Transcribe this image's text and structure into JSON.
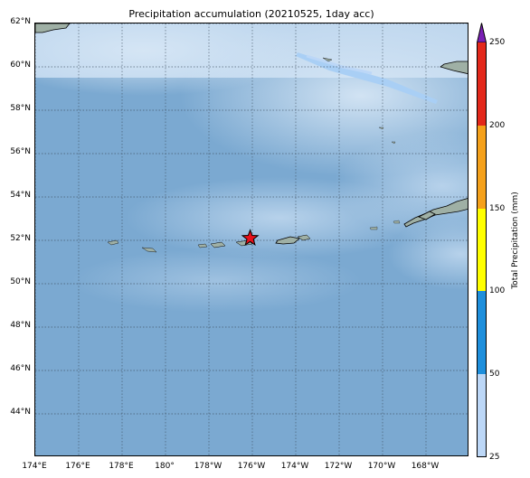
{
  "title": "Precipitation accumulation (20210525, 1day acc)",
  "map": {
    "lat_ticks": [
      "62°N",
      "60°N",
      "58°N",
      "56°N",
      "54°N",
      "52°N",
      "50°N",
      "48°N",
      "46°N",
      "44°N"
    ],
    "lon_ticks": [
      "174°E",
      "176°E",
      "178°E",
      "180°",
      "178°W",
      "176°W",
      "174°W",
      "172°W",
      "170°W",
      "168°W"
    ],
    "lat_values": [
      62,
      60,
      58,
      56,
      54,
      52,
      50,
      48,
      46,
      44
    ],
    "lon_values": [
      174,
      176,
      178,
      180,
      182,
      184,
      186,
      188,
      190,
      192
    ],
    "extent": {
      "lon_min": 174,
      "lon_max": 194,
      "lat_min": 42,
      "lat_max": 62
    },
    "gridlines": true,
    "marker": {
      "name": "event location",
      "lon": 183.9,
      "lat": 52.1,
      "symbol": "star",
      "color": "#e8101a"
    },
    "ocean_color": "#7ba9d1",
    "land_color": "#9fb0a5"
  },
  "colorbar": {
    "label": "Total Precipitation (mm)",
    "ticks": [
      "25",
      "50",
      "100",
      "150",
      "200",
      "250"
    ],
    "bounds": [
      25,
      50,
      100,
      150,
      200,
      250
    ],
    "colors": [
      "#bcd7f7",
      "#1e8fdc",
      "#ffff00",
      "#f5a11b",
      "#e3281b"
    ],
    "extend_color": "#7a1fb5"
  }
}
